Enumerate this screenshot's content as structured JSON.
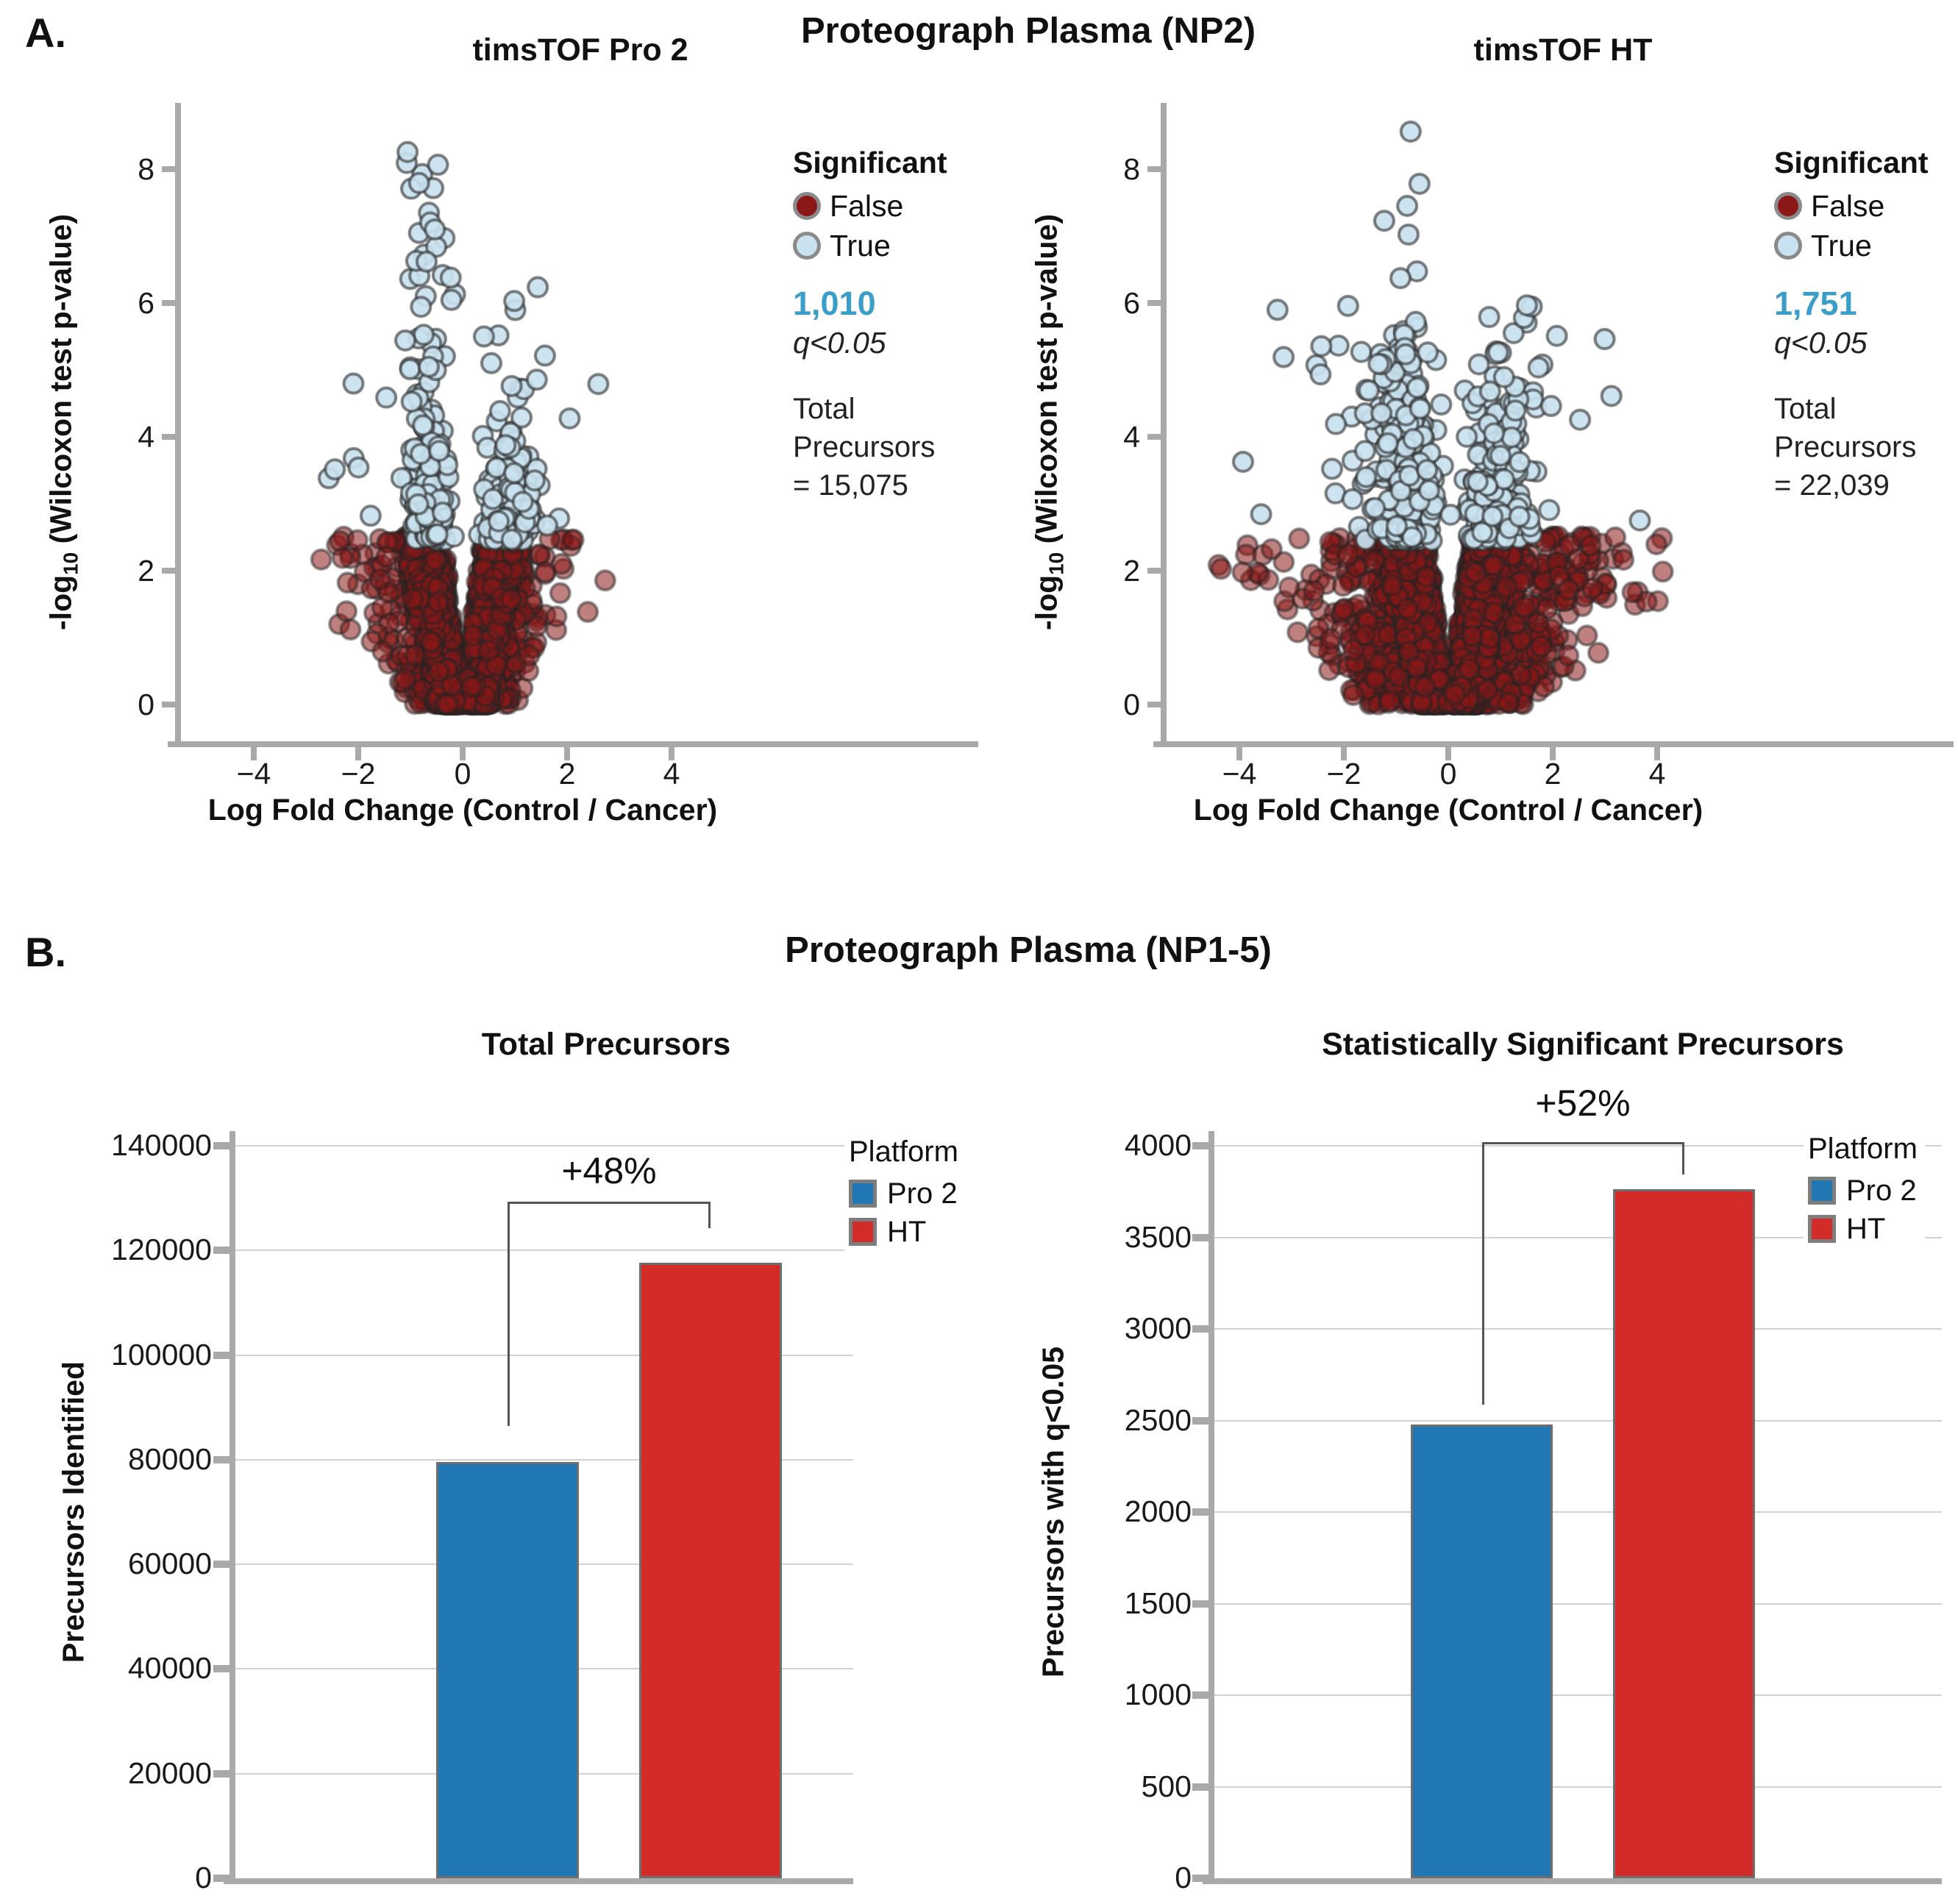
{
  "panel_a": {
    "label": "A.",
    "title": "Proteograph Plasma (NP2)",
    "y_axis_label_prefix": "-log",
    "y_axis_label_sub": "10",
    "y_axis_label_suffix": " (Wilcoxon test p-value)"
  },
  "panel_b": {
    "label": "B.",
    "title": "Proteograph Plasma (NP1-5)",
    "legend": {
      "title": "Platform",
      "items": [
        "Pro 2",
        "HT"
      ]
    }
  },
  "colors": {
    "not_significant_fill": "#8b1717",
    "significant_fill": "#c9e2ef",
    "point_outline": "#2b2b2b",
    "legend_circle_border": "#8a8a8a",
    "count_blue": "#3b9ec8",
    "bar_blue": "#2077b4",
    "bar_red": "#d32b28",
    "axis_gray": "#a9a9a9",
    "grid_gray": "#d2d2d2",
    "bracket_gray": "#555555"
  },
  "chart_data": [
    {
      "id": "volcano_pro2",
      "type": "scatter",
      "subtype": "volcano",
      "title": "timsTOF Pro 2",
      "xlabel": "Log Fold Change (Control / Cancer)",
      "ylabel": "-log10 (Wilcoxon test p-value)",
      "xlim": [
        -5.4,
        5.4
      ],
      "ylim": [
        -0.6,
        9.0
      ],
      "xticks": [
        -4,
        -2,
        0,
        2,
        4
      ],
      "yticks": [
        0,
        2,
        4,
        6,
        8
      ],
      "grid": false,
      "legend": {
        "title": "Significant",
        "false_label": "False",
        "true_label": "True",
        "position": "upper-right"
      },
      "significant_count": "1,010",
      "significant_criterion": "q<0.05",
      "total_lines": [
        "Total",
        "Precursors",
        "= 15,075"
      ],
      "total_precursors": 15075,
      "significant_precursors": 1010,
      "significance_threshold_neglog10p": 2.5,
      "x_extent_observed": [
        -2.5,
        2.8
      ],
      "y_max_observed": 8.45,
      "distribution": {
        "seed": 1337,
        "red": {
          "n": 3800,
          "y_max": 2.52,
          "y_exp": 1.45,
          "left_prob": 0.46,
          "inner_base": 0.04,
          "inner_slope": 0.15,
          "width_base": 0.44,
          "width_slope": 0.11,
          "outlier_frac": 0.06,
          "outlier_scale": 0.5,
          "outlier_x_max": 2.8
        },
        "blue": {
          "n": 400,
          "left_frac": 0.58,
          "left_center": -0.63,
          "left_sd": 0.155,
          "left_sd_grow": 0.12,
          "left_tail": 1.1,
          "left_y_max": 8.45,
          "left_top_frac": 0.035,
          "left_top_min": 6.6,
          "right_center": 0.88,
          "right_sd": 0.21,
          "right_sd_grow": 0.1,
          "right_tail": 0.75,
          "right_y_max": 6.3,
          "outlier_frac": 0.05,
          "outlier_x_max": 2.6,
          "outlier_y_max": 5.3
        }
      }
    },
    {
      "id": "volcano_ht",
      "type": "scatter",
      "subtype": "volcano",
      "title": "timsTOF HT",
      "xlabel": "Log Fold Change (Control / Cancer)",
      "ylabel": "-log10 (Wilcoxon test p-value)",
      "xlim": [
        -5.4,
        5.4
      ],
      "ylim": [
        -0.6,
        9.0
      ],
      "xticks": [
        -4,
        -2,
        0,
        2,
        4
      ],
      "yticks": [
        0,
        2,
        4,
        6,
        8
      ],
      "grid": false,
      "legend": {
        "title": "Significant",
        "false_label": "False",
        "true_label": "True",
        "position": "upper-right"
      },
      "significant_count": "1,751",
      "significant_criterion": "q<0.05",
      "total_lines": [
        "Total",
        "Precursors",
        "= 22,039"
      ],
      "total_precursors": 22039,
      "significant_precursors": 1751,
      "significance_threshold_neglog10p": 2.5,
      "x_extent_observed": [
        -4.3,
        4.4
      ],
      "y_max_observed": 8.7,
      "distribution": {
        "seed": 9241,
        "red": {
          "n": 5200,
          "y_max": 2.52,
          "y_exp": 1.35,
          "left_prob": 0.47,
          "inner_base": 0.05,
          "inner_slope": 0.16,
          "width_base": 0.52,
          "width_slope": 0.13,
          "outlier_frac": 0.11,
          "outlier_scale": 0.85,
          "outlier_x_max": 4.4
        },
        "blue": {
          "n": 580,
          "left_frac": 0.55,
          "left_center": -0.78,
          "left_sd": 0.22,
          "left_sd_grow": 0.1,
          "left_tail": 1.05,
          "left_y_max": 8.7,
          "left_top_frac": 0.02,
          "left_top_min": 7.0,
          "right_center": 0.95,
          "right_sd": 0.27,
          "right_sd_grow": 0.09,
          "right_tail": 0.8,
          "right_y_max": 6.6,
          "outlier_frac": 0.06,
          "outlier_x_max": 4.0,
          "outlier_y_max": 6.0
        }
      }
    },
    {
      "id": "total_precursors",
      "type": "bar",
      "title": "Total Precursors",
      "ylabel": "Precursors Identified",
      "categories": [
        "Pro 2",
        "HT"
      ],
      "values": [
        79600,
        117600
      ],
      "ylim": [
        0,
        140000
      ],
      "ytick_step": 20000,
      "grid": true,
      "legend": {
        "title": "Platform",
        "labels": [
          "Pro 2",
          "HT"
        ],
        "position": "right"
      },
      "annotation": {
        "text": "+48%",
        "bracket_top_value": 129300,
        "left_drop_value": 86500,
        "right_drop_value": 124200
      }
    },
    {
      "id": "significant_precursors",
      "type": "bar",
      "title": "Statistically Significant Precursors",
      "ylabel": "Precursors with q<0.05",
      "categories": [
        "Pro 2",
        "HT"
      ],
      "values": [
        2476,
        3763
      ],
      "ylim": [
        0,
        4000
      ],
      "ytick_step": 500,
      "grid": true,
      "legend": {
        "title": "Platform",
        "labels": [
          "Pro 2",
          "HT"
        ],
        "position": "overlay-right"
      },
      "annotation": {
        "text": "+52%",
        "bracket_top_value": 4020,
        "left_drop_value": 2588,
        "right_drop_value": 3842
      }
    }
  ]
}
